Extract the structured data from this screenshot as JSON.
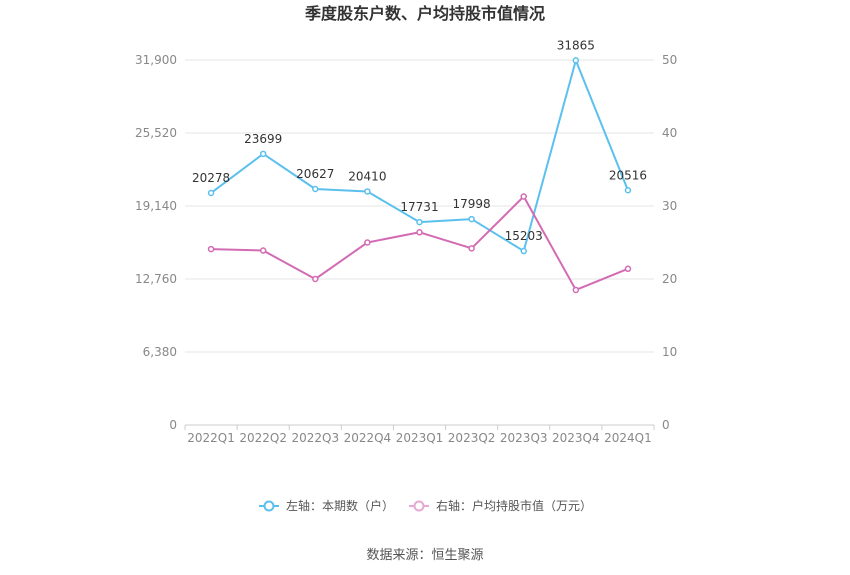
{
  "chart_data": {
    "type": "line",
    "title": "季度股东户数、户均持股市值情况",
    "categories": [
      "2022Q1",
      "2022Q2",
      "2022Q3",
      "2022Q4",
      "2023Q1",
      "2023Q2",
      "2023Q3",
      "2023Q4",
      "2024Q1"
    ],
    "y_left": {
      "ticks": [
        "0",
        "6,380",
        "12,760",
        "19,140",
        "25,520",
        "31,900"
      ],
      "range": [
        0,
        31900
      ]
    },
    "y_right": {
      "ticks": [
        "0",
        "10",
        "20",
        "30",
        "40",
        "50"
      ],
      "range": [
        0,
        50
      ]
    },
    "series": [
      {
        "name": "左轴：本期数（户）",
        "axis": "left",
        "color": "#5bc0ee",
        "values": [
          20278,
          23699,
          20627,
          20410,
          17731,
          17998,
          15203,
          31865,
          20516
        ],
        "labels": [
          "20278",
          "23699",
          "20627",
          "20410",
          "17731",
          "17998",
          "15203",
          "31865",
          "20516"
        ]
      },
      {
        "name": "右轴：户均持股市值（万元）",
        "axis": "right",
        "color": "#d36bb4",
        "values": [
          24.1,
          23.9,
          20.0,
          25.0,
          26.4,
          24.2,
          31.3,
          18.5,
          21.4
        ]
      }
    ],
    "grid": true,
    "legend_position": "bottom"
  },
  "source": "数据来源：恒生聚源"
}
